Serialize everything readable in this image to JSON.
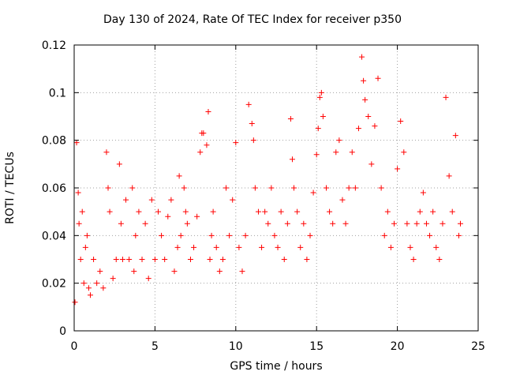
{
  "chart_data": {
    "type": "scatter",
    "title": "Day 130 of 2024, Rate Of TEC Index for receiver p350",
    "xlabel": "GPS time / hours",
    "ylabel": "ROTI / TECUs",
    "xlim": [
      0,
      25
    ],
    "ylim": [
      0,
      0.12
    ],
    "x_ticks": [
      0,
      5,
      10,
      15,
      20,
      25
    ],
    "x_tick_labels": [
      "0",
      "5",
      "10",
      "15",
      "20",
      "25"
    ],
    "y_ticks": [
      0,
      0.02,
      0.04,
      0.06,
      0.08,
      0.1,
      0.12
    ],
    "y_tick_labels": [
      "0",
      "0.02",
      "0.04",
      "0.06",
      "0.08",
      "0.1",
      "0.12"
    ],
    "grid": true,
    "legend": "none",
    "marker": "+",
    "marker_color": "#ff0000",
    "series": [
      {
        "x": [
          0.05,
          0.15,
          0.25,
          0.3,
          0.4,
          0.5,
          0.6,
          0.7,
          0.8,
          0.9,
          1.0,
          1.2,
          1.4,
          1.6,
          1.8,
          2.0,
          2.1,
          2.2,
          2.4,
          2.6,
          2.8,
          2.9,
          3.0,
          3.2,
          3.4,
          3.6,
          3.7,
          3.8,
          4.0,
          4.2,
          4.4,
          4.6,
          4.8,
          5.0,
          5.2,
          5.4,
          5.6,
          5.8,
          6.0,
          6.2,
          6.4,
          6.5,
          6.6,
          6.8,
          6.9,
          7.0,
          7.2,
          7.4,
          7.6,
          7.8,
          7.9,
          8.0,
          8.2,
          8.3,
          8.4,
          8.5,
          8.6,
          8.8,
          9.0,
          9.2,
          9.4,
          9.6,
          9.8,
          10.0,
          10.2,
          10.4,
          10.6,
          10.8,
          11.0,
          11.1,
          11.2,
          11.4,
          11.6,
          11.8,
          12.0,
          12.2,
          12.4,
          12.6,
          12.8,
          13.0,
          13.2,
          13.4,
          13.5,
          13.6,
          13.8,
          14.0,
          14.2,
          14.4,
          14.6,
          14.8,
          15.0,
          15.1,
          15.2,
          15.3,
          15.4,
          15.6,
          15.8,
          16.0,
          16.2,
          16.4,
          16.6,
          16.8,
          17.0,
          17.2,
          17.4,
          17.6,
          17.8,
          17.9,
          18.0,
          18.2,
          18.4,
          18.6,
          18.8,
          19.0,
          19.2,
          19.4,
          19.6,
          19.8,
          20.0,
          20.2,
          20.4,
          20.6,
          20.8,
          21.0,
          21.2,
          21.4,
          21.6,
          21.8,
          22.0,
          22.2,
          22.4,
          22.6,
          22.8,
          23.0,
          23.2,
          23.4,
          23.6,
          23.8,
          23.9
        ],
        "y": [
          0.012,
          0.079,
          0.058,
          0.045,
          0.03,
          0.05,
          0.02,
          0.035,
          0.04,
          0.018,
          0.015,
          0.03,
          0.02,
          0.025,
          0.018,
          0.075,
          0.06,
          0.05,
          0.022,
          0.03,
          0.07,
          0.045,
          0.03,
          0.055,
          0.03,
          0.06,
          0.025,
          0.04,
          0.05,
          0.03,
          0.045,
          0.022,
          0.055,
          0.03,
          0.05,
          0.04,
          0.03,
          0.048,
          0.055,
          0.025,
          0.035,
          0.065,
          0.04,
          0.06,
          0.05,
          0.045,
          0.03,
          0.035,
          0.048,
          0.075,
          0.083,
          0.083,
          0.078,
          0.092,
          0.03,
          0.04,
          0.05,
          0.035,
          0.025,
          0.03,
          0.06,
          0.04,
          0.055,
          0.079,
          0.035,
          0.025,
          0.04,
          0.095,
          0.087,
          0.08,
          0.06,
          0.05,
          0.035,
          0.05,
          0.045,
          0.06,
          0.04,
          0.035,
          0.05,
          0.03,
          0.045,
          0.089,
          0.072,
          0.06,
          0.05,
          0.035,
          0.045,
          0.03,
          0.04,
          0.058,
          0.074,
          0.085,
          0.098,
          0.1,
          0.09,
          0.06,
          0.05,
          0.045,
          0.075,
          0.08,
          0.055,
          0.045,
          0.06,
          0.075,
          0.06,
          0.085,
          0.115,
          0.105,
          0.097,
          0.09,
          0.07,
          0.086,
          0.106,
          0.06,
          0.04,
          0.05,
          0.035,
          0.045,
          0.068,
          0.088,
          0.075,
          0.045,
          0.035,
          0.03,
          0.045,
          0.05,
          0.058,
          0.045,
          0.04,
          0.05,
          0.035,
          0.03,
          0.045,
          0.098,
          0.065,
          0.05,
          0.082,
          0.04,
          0.045
        ]
      }
    ]
  }
}
